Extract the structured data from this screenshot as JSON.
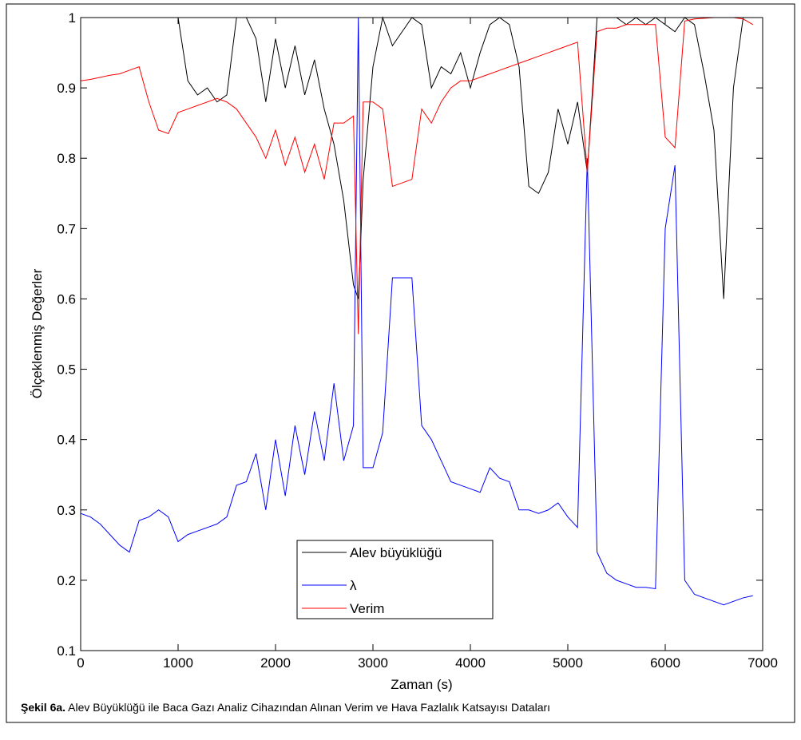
{
  "chart_data": {
    "type": "line",
    "y_label": "Ölçeklenmiş Değerler",
    "x_label": "Zaman (s)",
    "caption": {
      "label": "Şekil 6a.",
      "text": "Alev Büyüklüğü ile Baca Gazı Analiz Cihazından Alınan Verim ve Hava Fazlalık Katsayısı Dataları"
    },
    "x": [
      0,
      100,
      200,
      300,
      400,
      500,
      600,
      700,
      800,
      900,
      1000,
      1100,
      1200,
      1300,
      1400,
      1500,
      1600,
      1700,
      1800,
      1900,
      2000,
      2100,
      2200,
      2300,
      2400,
      2500,
      2600,
      2700,
      2800,
      2850,
      2900,
      3000,
      3100,
      3200,
      3300,
      3400,
      3500,
      3600,
      3700,
      3800,
      3900,
      4000,
      4100,
      4200,
      4300,
      4400,
      4500,
      4600,
      4700,
      4800,
      4900,
      5000,
      5100,
      5200,
      5300,
      5400,
      5500,
      5600,
      5700,
      5800,
      5900,
      6000,
      6100,
      6200,
      6300,
      6400,
      6500,
      6600,
      6700,
      6800,
      6900
    ],
    "series": [
      {
        "name": "Alev büyüklüğü",
        "color": "#000000",
        "values": [
          1,
          1,
          1,
          1,
          1,
          1,
          1,
          1,
          1,
          1,
          1,
          0.91,
          0.89,
          0.9,
          0.88,
          0.89,
          1,
          1,
          0.97,
          0.88,
          0.97,
          0.9,
          0.96,
          0.89,
          0.94,
          0.87,
          0.82,
          0.74,
          0.62,
          0.6,
          0.77,
          0.93,
          1,
          0.96,
          0.98,
          1,
          0.99,
          0.9,
          0.93,
          0.92,
          0.95,
          0.9,
          0.95,
          0.99,
          1,
          0.99,
          0.93,
          0.76,
          0.75,
          0.78,
          0.87,
          0.82,
          0.88,
          0.78,
          1,
          1,
          1,
          0.99,
          1,
          0.99,
          1,
          0.99,
          0.98,
          1,
          0.99,
          0.92,
          0.84,
          0.6,
          0.9,
          1,
          1
        ]
      },
      {
        "name": "λ",
        "color": "#0000ff",
        "values": [
          0.295,
          0.29,
          0.28,
          0.265,
          0.25,
          0.24,
          0.285,
          0.29,
          0.3,
          0.29,
          0.255,
          0.265,
          0.27,
          0.275,
          0.28,
          0.29,
          0.335,
          0.34,
          0.38,
          0.3,
          0.4,
          0.32,
          0.42,
          0.35,
          0.44,
          0.37,
          0.48,
          0.37,
          0.42,
          1,
          0.36,
          0.36,
          0.41,
          0.63,
          0.63,
          0.63,
          0.42,
          0.4,
          0.37,
          0.34,
          0.335,
          0.33,
          0.325,
          0.36,
          0.345,
          0.34,
          0.3,
          0.3,
          0.295,
          0.3,
          0.31,
          0.29,
          0.275,
          0.8,
          0.24,
          0.21,
          0.2,
          0.195,
          0.19,
          0.19,
          0.188,
          0.7,
          0.79,
          0.2,
          0.18,
          0.175,
          0.17,
          0.165,
          0.17,
          0.175,
          0.178
        ]
      },
      {
        "name": "Verim",
        "color": "#ff0000",
        "values": [
          0.91,
          0.912,
          0.915,
          0.918,
          0.92,
          0.925,
          0.93,
          0.88,
          0.84,
          0.835,
          0.865,
          0.87,
          0.875,
          0.88,
          0.885,
          0.88,
          0.87,
          0.85,
          0.83,
          0.8,
          0.84,
          0.79,
          0.83,
          0.78,
          0.82,
          0.77,
          0.85,
          0.85,
          0.86,
          0.55,
          0.88,
          0.88,
          0.87,
          0.76,
          0.765,
          0.77,
          0.87,
          0.85,
          0.88,
          0.9,
          0.91,
          0.91,
          0.915,
          0.92,
          0.925,
          0.93,
          0.935,
          0.94,
          0.945,
          0.95,
          0.955,
          0.96,
          0.965,
          0.78,
          0.98,
          0.985,
          0.985,
          0.99,
          0.99,
          0.99,
          0.99,
          0.83,
          0.815,
          0.995,
          0.998,
          0.999,
          1,
          1,
          1,
          0.998,
          0.99
        ]
      }
    ],
    "xlim": [
      0,
      7000
    ],
    "xticks": [
      0,
      1000,
      2000,
      3000,
      4000,
      5000,
      6000,
      7000
    ],
    "ylim": [
      0.1,
      1
    ],
    "yticks": [
      0.1,
      0.2,
      0.3,
      0.4,
      0.5,
      0.6,
      0.7,
      0.8,
      0.9,
      1
    ],
    "legend": "lower center"
  }
}
